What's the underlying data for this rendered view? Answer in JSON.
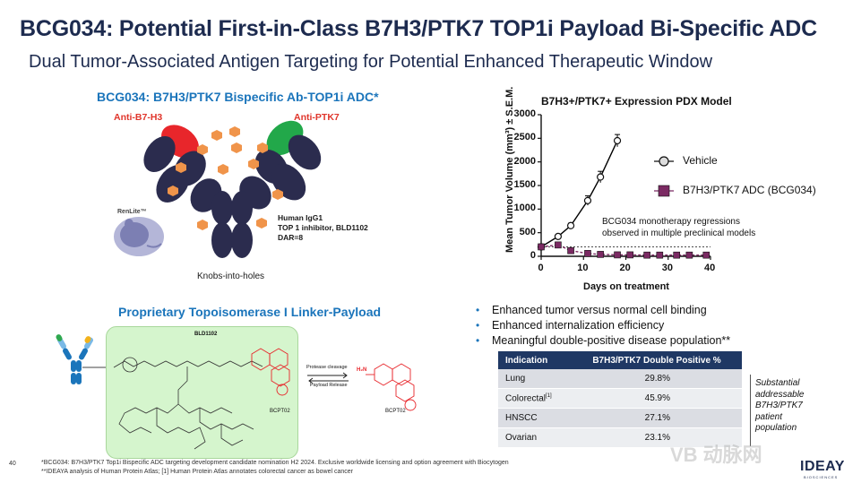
{
  "header": {
    "title": "BCG034: Potential First-in-Class B7H3/PTK7 TOP1i Payload Bi-Specific ADC",
    "subtitle": "Dual Tumor-Associated Antigen Targeting for Potential Enhanced Therapeutic Window"
  },
  "antibody": {
    "title": "BCG034: B7H3/PTK7 Bispecific Ab-TOP1i ADC*",
    "arm_left": "Anti-B7-H3",
    "arm_right": "Anti-PTK7",
    "specs": [
      "Human IgG1",
      "TOP 1 inhibitor, BLD1102",
      "DAR=8"
    ],
    "caption": "Knobs-into-holes",
    "renlite": "RenLite™",
    "colors": {
      "left_arm": "#e8262b",
      "right_arm": "#22a84a",
      "body": "#2b2c4e",
      "payload": "#f0944a"
    }
  },
  "linker": {
    "title": "Proprietary Topoisomerase I Linker-Payload",
    "compound": "BLD1102",
    "payload_a": "BCPT02",
    "payload_b": "BCPT02",
    "arrow_top": "Protease cleavage",
    "arrow_bottom": "Payload Release"
  },
  "chart_data": {
    "type": "line",
    "title": "B7H3+/PTK7+ Expression PDX Model",
    "xlabel": "Days on treatment",
    "ylabel": "Mean Tumor Volume (mm³) ± S.E.M.",
    "xlim": [
      0,
      40
    ],
    "ylim": [
      0,
      3000
    ],
    "xticks": [
      "0",
      "10",
      "20",
      "30",
      "40"
    ],
    "yticks": [
      "0",
      "500",
      "1000",
      "1500",
      "2000",
      "2500",
      "3000"
    ],
    "series": [
      {
        "name": "Vehicle",
        "color": "#000000",
        "marker": "circle-open",
        "x": [
          0,
          4,
          7,
          11,
          14,
          18
        ],
        "y": [
          200,
          420,
          650,
          1180,
          1680,
          2450
        ],
        "err": [
          20,
          40,
          50,
          100,
          120,
          130
        ]
      },
      {
        "name": "B7H3/PTK7 ADC (BCG034)",
        "color": "#7b2a63",
        "marker": "square",
        "x": [
          0,
          4,
          7,
          11,
          14,
          18,
          21,
          25,
          28,
          32,
          35,
          39
        ],
        "y": [
          200,
          240,
          120,
          60,
          40,
          30,
          30,
          25,
          25,
          25,
          25,
          25
        ],
        "err": [
          15,
          20,
          15,
          10,
          8,
          5,
          5,
          5,
          5,
          5,
          5,
          5
        ]
      }
    ],
    "baseline": 200,
    "annotation": [
      "BCG034 monotherapy regressions",
      "observed in multiple preclinical models"
    ],
    "grid": false,
    "legend": "right"
  },
  "bullets": [
    "Enhanced tumor versus normal cell binding",
    "Enhanced internalization efficiency",
    "Meaningful double-positive disease population**"
  ],
  "table": {
    "headers": [
      "Indication",
      "B7H3/PTK7 Double Positive %"
    ],
    "rows": [
      {
        "indication": "Lung",
        "sup": "",
        "value": "29.8%"
      },
      {
        "indication": "Colorectal",
        "sup": "[1]",
        "value": "45.9%"
      },
      {
        "indication": "HNSCC",
        "sup": "",
        "value": "27.1%"
      },
      {
        "indication": "Ovarian",
        "sup": "",
        "value": "23.1%"
      }
    ],
    "side_note": [
      "Substantial",
      "addressable",
      "B7H3/PTK7",
      "patient",
      "population"
    ]
  },
  "footer": {
    "page": "40",
    "line1": "*BCG034: B7H3/PTK7 Top1i Bispecific ADC targeting development candidate nomination H2 2024. Exclusive worldwide licensing and option agreement with Biocytogen",
    "line2": "**IDEAYA analysis of Human Protein Atlas; [1] Human Protein Atlas annotates colorectal cancer as bowel cancer",
    "logo": "IDEAYA",
    "logo_sub": "BIOSCIENCES",
    "watermark": "VB 动脉网"
  }
}
